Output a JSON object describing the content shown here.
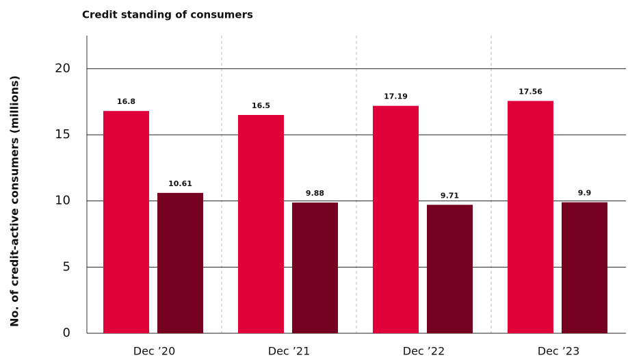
{
  "chart_data": {
    "type": "bar",
    "title": "Credit standing of consumers",
    "y_label": "No. of credit-active consumers (millions)",
    "categories": [
      "Dec ’20",
      "Dec ’21",
      "Dec ’22",
      "Dec ’23"
    ],
    "series": [
      {
        "color": "#e0003a",
        "values": [
          16.8,
          16.5,
          17.19,
          17.56
        ]
      },
      {
        "color": "#750020",
        "values": [
          10.61,
          9.88,
          9.71,
          9.9
        ]
      }
    ],
    "ylim": [
      0,
      22.5
    ],
    "yticks": [
      0,
      5,
      10,
      15,
      20
    ],
    "grid": true
  }
}
